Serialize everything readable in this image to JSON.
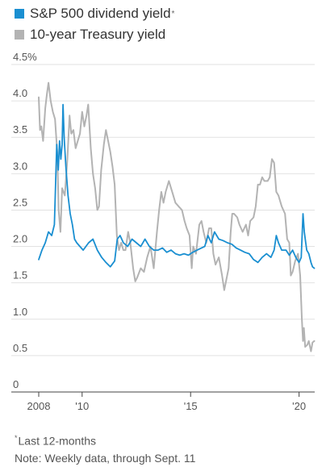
{
  "chart_data": {
    "type": "line",
    "title": "",
    "xlabel": "",
    "ylabel": "",
    "ylim": [
      0,
      4.5
    ],
    "xlim": [
      2008.0,
      2020.72
    ],
    "y_ticks": [
      0,
      0.5,
      1.0,
      1.5,
      2.0,
      2.5,
      3.0,
      3.5,
      4.0,
      4.5
    ],
    "y_tick_labels": [
      "0",
      "0.5",
      "1.0",
      "1.5",
      "2.0",
      "2.5",
      "3.0",
      "3.5",
      "4.0",
      "4.5%"
    ],
    "x_ticks": [
      2008,
      2010,
      2015,
      2020
    ],
    "x_tick_labels": [
      "2008",
      "'10",
      "'15",
      "'20"
    ],
    "grid": true,
    "legend_position": "top-left",
    "series": [
      {
        "name": "S&P 500 dividend yield",
        "color": "#1a8fd1",
        "points": [
          [
            2008.0,
            1.82
          ],
          [
            2008.15,
            1.95
          ],
          [
            2008.3,
            2.05
          ],
          [
            2008.45,
            2.2
          ],
          [
            2008.6,
            2.15
          ],
          [
            2008.72,
            2.3
          ],
          [
            2008.78,
            2.9
          ],
          [
            2008.83,
            3.4
          ],
          [
            2008.9,
            3.05
          ],
          [
            2008.96,
            3.45
          ],
          [
            2009.02,
            3.2
          ],
          [
            2009.08,
            3.4
          ],
          [
            2009.12,
            3.95
          ],
          [
            2009.17,
            3.5
          ],
          [
            2009.25,
            3.1
          ],
          [
            2009.35,
            2.7
          ],
          [
            2009.45,
            2.45
          ],
          [
            2009.55,
            2.3
          ],
          [
            2009.65,
            2.1
          ],
          [
            2009.75,
            2.05
          ],
          [
            2009.9,
            2.0
          ],
          [
            2010.05,
            1.95
          ],
          [
            2010.3,
            2.05
          ],
          [
            2010.5,
            2.1
          ],
          [
            2010.7,
            1.95
          ],
          [
            2010.9,
            1.85
          ],
          [
            2011.1,
            1.78
          ],
          [
            2011.3,
            1.72
          ],
          [
            2011.5,
            1.8
          ],
          [
            2011.62,
            2.1
          ],
          [
            2011.75,
            2.15
          ],
          [
            2011.9,
            2.05
          ],
          [
            2012.1,
            2.0
          ],
          [
            2012.3,
            2.1
          ],
          [
            2012.5,
            2.05
          ],
          [
            2012.7,
            2.0
          ],
          [
            2012.9,
            2.1
          ],
          [
            2013.1,
            2.0
          ],
          [
            2013.3,
            1.95
          ],
          [
            2013.5,
            1.95
          ],
          [
            2013.7,
            1.98
          ],
          [
            2013.9,
            1.92
          ],
          [
            2014.1,
            1.95
          ],
          [
            2014.3,
            1.9
          ],
          [
            2014.5,
            1.88
          ],
          [
            2014.7,
            1.9
          ],
          [
            2014.9,
            1.88
          ],
          [
            2015.1,
            1.92
          ],
          [
            2015.3,
            1.95
          ],
          [
            2015.5,
            1.98
          ],
          [
            2015.65,
            2.0
          ],
          [
            2015.8,
            2.15
          ],
          [
            2015.95,
            2.05
          ],
          [
            2016.1,
            2.2
          ],
          [
            2016.3,
            2.1
          ],
          [
            2016.5,
            2.08
          ],
          [
            2016.7,
            2.05
          ],
          [
            2016.9,
            2.03
          ],
          [
            2017.1,
            1.98
          ],
          [
            2017.3,
            1.95
          ],
          [
            2017.5,
            1.92
          ],
          [
            2017.7,
            1.9
          ],
          [
            2017.9,
            1.82
          ],
          [
            2018.1,
            1.78
          ],
          [
            2018.3,
            1.85
          ],
          [
            2018.5,
            1.9
          ],
          [
            2018.7,
            1.85
          ],
          [
            2018.85,
            1.95
          ],
          [
            2018.95,
            2.15
          ],
          [
            2019.05,
            2.05
          ],
          [
            2019.2,
            1.95
          ],
          [
            2019.4,
            1.95
          ],
          [
            2019.55,
            1.88
          ],
          [
            2019.7,
            1.95
          ],
          [
            2019.85,
            1.85
          ],
          [
            2020.0,
            1.78
          ],
          [
            2020.1,
            1.85
          ],
          [
            2020.18,
            2.45
          ],
          [
            2020.24,
            2.2
          ],
          [
            2020.35,
            1.95
          ],
          [
            2020.45,
            1.9
          ],
          [
            2020.55,
            1.78
          ],
          [
            2020.62,
            1.72
          ],
          [
            2020.7,
            1.7
          ]
        ]
      },
      {
        "name": "10-year Treasury yield",
        "color": "#b3b3b3",
        "points": [
          [
            2008.0,
            4.05
          ],
          [
            2008.06,
            3.6
          ],
          [
            2008.12,
            3.65
          ],
          [
            2008.2,
            3.45
          ],
          [
            2008.3,
            3.9
          ],
          [
            2008.38,
            4.1
          ],
          [
            2008.45,
            4.25
          ],
          [
            2008.55,
            4.0
          ],
          [
            2008.65,
            3.85
          ],
          [
            2008.75,
            3.75
          ],
          [
            2008.85,
            3.3
          ],
          [
            2008.92,
            2.5
          ],
          [
            2009.0,
            2.2
          ],
          [
            2009.08,
            2.8
          ],
          [
            2009.2,
            2.7
          ],
          [
            2009.32,
            3.2
          ],
          [
            2009.42,
            3.8
          ],
          [
            2009.5,
            3.55
          ],
          [
            2009.6,
            3.6
          ],
          [
            2009.7,
            3.35
          ],
          [
            2009.8,
            3.45
          ],
          [
            2009.9,
            3.55
          ],
          [
            2010.0,
            3.85
          ],
          [
            2010.1,
            3.65
          ],
          [
            2010.2,
            3.8
          ],
          [
            2010.28,
            3.95
          ],
          [
            2010.4,
            3.35
          ],
          [
            2010.5,
            3.0
          ],
          [
            2010.6,
            2.8
          ],
          [
            2010.7,
            2.5
          ],
          [
            2010.78,
            2.55
          ],
          [
            2010.88,
            3.05
          ],
          [
            2011.0,
            3.4
          ],
          [
            2011.1,
            3.6
          ],
          [
            2011.2,
            3.45
          ],
          [
            2011.3,
            3.3
          ],
          [
            2011.4,
            3.1
          ],
          [
            2011.5,
            2.85
          ],
          [
            2011.6,
            2.15
          ],
          [
            2011.7,
            1.95
          ],
          [
            2011.8,
            2.05
          ],
          [
            2011.9,
            1.95
          ],
          [
            2012.0,
            1.95
          ],
          [
            2012.12,
            2.2
          ],
          [
            2012.22,
            2.05
          ],
          [
            2012.35,
            1.7
          ],
          [
            2012.45,
            1.52
          ],
          [
            2012.55,
            1.58
          ],
          [
            2012.7,
            1.7
          ],
          [
            2012.85,
            1.65
          ],
          [
            2013.0,
            1.85
          ],
          [
            2013.15,
            2.0
          ],
          [
            2013.3,
            1.7
          ],
          [
            2013.45,
            2.2
          ],
          [
            2013.55,
            2.5
          ],
          [
            2013.65,
            2.75
          ],
          [
            2013.75,
            2.6
          ],
          [
            2013.85,
            2.75
          ],
          [
            2014.0,
            2.9
          ],
          [
            2014.15,
            2.75
          ],
          [
            2014.3,
            2.6
          ],
          [
            2014.45,
            2.55
          ],
          [
            2014.6,
            2.5
          ],
          [
            2014.72,
            2.35
          ],
          [
            2014.82,
            2.25
          ],
          [
            2014.95,
            2.15
          ],
          [
            2015.05,
            1.7
          ],
          [
            2015.12,
            2.0
          ],
          [
            2015.25,
            1.9
          ],
          [
            2015.4,
            2.3
          ],
          [
            2015.5,
            2.35
          ],
          [
            2015.6,
            2.2
          ],
          [
            2015.72,
            2.05
          ],
          [
            2015.85,
            2.25
          ],
          [
            2015.95,
            2.25
          ],
          [
            2016.05,
            1.9
          ],
          [
            2016.15,
            1.75
          ],
          [
            2016.3,
            1.85
          ],
          [
            2016.45,
            1.6
          ],
          [
            2016.55,
            1.4
          ],
          [
            2016.65,
            1.55
          ],
          [
            2016.75,
            1.7
          ],
          [
            2016.85,
            2.2
          ],
          [
            2016.92,
            2.45
          ],
          [
            2017.0,
            2.45
          ],
          [
            2017.15,
            2.4
          ],
          [
            2017.25,
            2.3
          ],
          [
            2017.4,
            2.2
          ],
          [
            2017.55,
            2.3
          ],
          [
            2017.65,
            2.15
          ],
          [
            2017.75,
            2.35
          ],
          [
            2017.9,
            2.4
          ],
          [
            2018.0,
            2.55
          ],
          [
            2018.1,
            2.85
          ],
          [
            2018.2,
            2.85
          ],
          [
            2018.3,
            2.95
          ],
          [
            2018.4,
            2.9
          ],
          [
            2018.55,
            2.9
          ],
          [
            2018.65,
            2.95
          ],
          [
            2018.75,
            3.2
          ],
          [
            2018.85,
            3.15
          ],
          [
            2018.95,
            2.75
          ],
          [
            2019.05,
            2.7
          ],
          [
            2019.2,
            2.55
          ],
          [
            2019.35,
            2.45
          ],
          [
            2019.45,
            2.1
          ],
          [
            2019.55,
            2.05
          ],
          [
            2019.62,
            1.6
          ],
          [
            2019.7,
            1.65
          ],
          [
            2019.82,
            1.8
          ],
          [
            2019.95,
            1.9
          ],
          [
            2020.05,
            1.6
          ],
          [
            2020.13,
            1.0
          ],
          [
            2020.18,
            0.7
          ],
          [
            2020.22,
            0.88
          ],
          [
            2020.28,
            0.62
          ],
          [
            2020.38,
            0.65
          ],
          [
            2020.45,
            0.7
          ],
          [
            2020.55,
            0.56
          ],
          [
            2020.62,
            0.68
          ],
          [
            2020.7,
            0.7
          ]
        ]
      }
    ]
  },
  "legend": {
    "dividend_label": "S&P 500 dividend yield",
    "dividend_marker": "*",
    "treasury_label": "10-year Treasury yield"
  },
  "notes": {
    "footnote_marker": "*",
    "footnote": "Last 12-months",
    "note": "Note: Weekly data, through Sept. 11"
  },
  "colors": {
    "dividend": "#1a8fd1",
    "treasury": "#b3b3b3",
    "grid": "#e2e2e2",
    "axis": "#444444",
    "tick_text": "#555555"
  }
}
